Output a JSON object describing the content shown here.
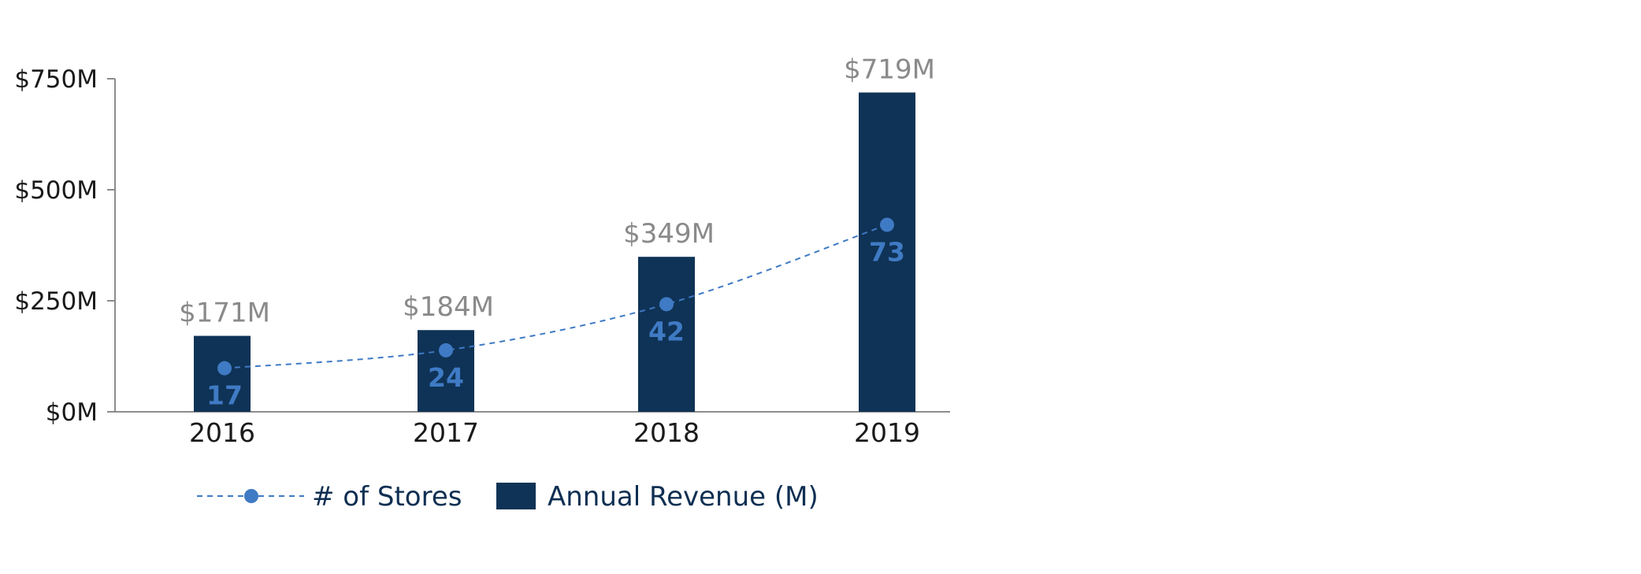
{
  "chart_data": {
    "type": "bar",
    "categories": [
      "2016",
      "2017",
      "2018",
      "2019"
    ],
    "series": [
      {
        "name": "Annual Revenue (M)",
        "type": "bar",
        "values": [
          171,
          184,
          349,
          719
        ],
        "labels": [
          "$171M",
          "$184M",
          "$349M",
          "$719M"
        ],
        "color": "#0f3356"
      },
      {
        "name": "# of Stores",
        "type": "line",
        "style": "dashed",
        "marker": "circle",
        "values": [
          17,
          24,
          42,
          73
        ],
        "labels": [
          "17",
          "24",
          "42",
          "73"
        ],
        "color": "#3f7ac4"
      }
    ],
    "y_axis": {
      "range": [
        0,
        750
      ],
      "ticks": [
        0,
        250,
        500,
        750
      ],
      "tick_labels": [
        "$0M",
        "$250M",
        "$500M",
        "$750M"
      ]
    },
    "secondary_axis": {
      "range": [
        0,
        130
      ],
      "visible": false
    },
    "grid": false,
    "legend": {
      "placement": "bottom",
      "entries": [
        "# of Stores",
        "Annual Revenue (M)"
      ]
    }
  }
}
